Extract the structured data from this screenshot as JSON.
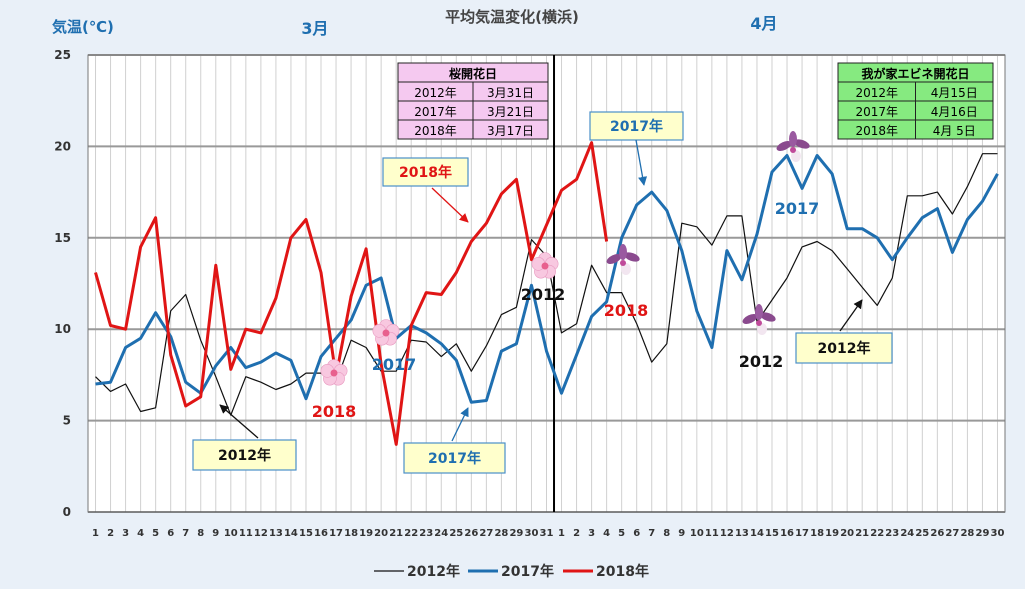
{
  "chart_data": {
    "type": "line",
    "title": "平均気温変化(横浜)",
    "ylabel": "気温(℃)",
    "ylim": [
      0,
      25
    ],
    "yticks": [
      0,
      5,
      10,
      15,
      20,
      25
    ],
    "grid": true,
    "legend_placement": "bottom",
    "month_labels": [
      {
        "label": "3月",
        "month": "march"
      },
      {
        "label": "4月",
        "month": "april"
      }
    ],
    "x_march": [
      "1",
      "2",
      "3",
      "4",
      "5",
      "6",
      "7",
      "8",
      "9",
      "10",
      "11",
      "12",
      "13",
      "14",
      "15",
      "16",
      "17",
      "18",
      "19",
      "20",
      "21",
      "22",
      "23",
      "24",
      "25",
      "26",
      "27",
      "28",
      "29",
      "30",
      "31"
    ],
    "x_april": [
      "1",
      "2",
      "3",
      "4",
      "5",
      "6",
      "7",
      "8",
      "9",
      "10",
      "11",
      "12",
      "13",
      "14",
      "15",
      "16",
      "17",
      "18",
      "19",
      "20",
      "21",
      "22",
      "23",
      "24",
      "25",
      "26",
      "27",
      "28",
      "29",
      "30"
    ],
    "series": [
      {
        "name": "2012年",
        "color": "#111111",
        "march": [
          7.4,
          6.6,
          7.0,
          5.5,
          5.7,
          11.0,
          11.9,
          9.4,
          7.4,
          5.3,
          7.4,
          7.1,
          6.7,
          7.0,
          7.6,
          7.6,
          7.1,
          9.4,
          9.0,
          7.7,
          7.7,
          9.4,
          9.3,
          8.5,
          9.2,
          7.7,
          9.1,
          10.8,
          11.2,
          14.9,
          14.0
        ],
        "april": [
          9.8,
          10.3,
          13.5,
          12.0,
          12.0,
          10.3,
          8.2,
          9.2,
          15.8,
          15.6,
          14.6,
          16.2,
          16.2,
          10.4,
          11.6,
          12.8,
          14.5,
          14.8,
          14.3,
          13.3,
          12.3,
          11.3,
          12.8,
          17.3,
          17.3,
          17.5,
          16.3,
          17.8,
          19.6,
          19.6
        ]
      },
      {
        "name": "2017年",
        "color": "#1f6fb0",
        "march": [
          7.0,
          7.1,
          9.0,
          9.5,
          10.9,
          9.6,
          7.1,
          6.5,
          8.0,
          9.0,
          7.9,
          8.2,
          8.7,
          8.3,
          6.2,
          8.5,
          9.5,
          10.5,
          12.4,
          12.8,
          9.5,
          10.2,
          9.8,
          9.2,
          8.3,
          6.0,
          6.1,
          8.8,
          9.2,
          12.4,
          8.8
        ],
        "april": [
          6.5,
          8.6,
          10.7,
          11.5,
          15.0,
          16.8,
          17.5,
          16.5,
          14.3,
          11.0,
          9.0,
          14.3,
          12.7,
          15.2,
          18.6,
          19.5,
          17.7,
          19.5,
          18.5,
          15.5,
          15.5,
          15.0,
          13.8,
          15.0,
          16.1,
          16.6,
          14.2,
          16.0,
          17.0,
          18.5
        ]
      },
      {
        "name": "2018年",
        "color": "#e01515",
        "march": [
          13.1,
          10.2,
          10.0,
          14.5,
          16.1,
          8.6,
          5.8,
          6.3,
          13.5,
          7.8,
          10.0,
          9.8,
          11.7,
          15.0,
          16.0,
          13.1,
          7.4,
          11.8,
          14.4,
          8.1,
          3.7,
          10.2,
          12.0,
          11.9,
          13.1,
          14.8,
          15.8,
          17.4,
          18.2,
          13.8,
          15.7
        ],
        "april": [
          17.6,
          18.2,
          20.2,
          14.8
        ]
      }
    ],
    "table_sakura": {
      "title": "桜開花日",
      "rows": [
        [
          "2012年",
          "3月31日"
        ],
        [
          "2017年",
          "3月21日"
        ],
        [
          "2018年",
          "3月17日"
        ]
      ]
    },
    "table_ebine": {
      "title": "我が家エビネ開花日",
      "rows": [
        [
          "2012年",
          "4月15日"
        ],
        [
          "2017年",
          "4月16日"
        ],
        [
          "2018年",
          "4月 5日"
        ]
      ]
    },
    "callouts": [
      {
        "text": "2018年",
        "color": "#e01515"
      },
      {
        "text": "2017年",
        "color": "#1f6fb0"
      },
      {
        "text": "2012年",
        "color": "#111111"
      },
      {
        "text": "2017年",
        "color": "#1f6fb0"
      },
      {
        "text": "2012年",
        "color": "#111111"
      }
    ],
    "flower_labels": [
      {
        "text": "2018",
        "color": "#e01515",
        "kind": "sakura"
      },
      {
        "text": "2017",
        "color": "#1f6fb0",
        "kind": "sakura"
      },
      {
        "text": "2012",
        "color": "#111111",
        "kind": "sakura"
      },
      {
        "text": "2018",
        "color": "#e01515",
        "kind": "ebine"
      },
      {
        "text": "2017",
        "color": "#1f6fb0",
        "kind": "ebine"
      },
      {
        "text": "2012",
        "color": "#111111",
        "kind": "ebine"
      }
    ]
  }
}
